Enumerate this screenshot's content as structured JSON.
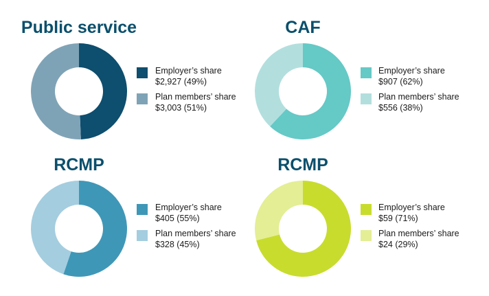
{
  "chart_data": [
    {
      "type": "pie",
      "title": "Public service",
      "slices": [
        {
          "label": "Employer’s share",
          "value": 2927,
          "value_text": "$2,927 (49%)",
          "percent": 49,
          "color": "#0e4e6e"
        },
        {
          "label": "Plan members’ share",
          "value": 3003,
          "value_text": "$3,003 (51%)",
          "percent": 51,
          "color": "#7fa3b6"
        }
      ]
    },
    {
      "type": "pie",
      "title": "CAF",
      "slices": [
        {
          "label": "Employer’s share",
          "value": 907,
          "value_text": "$907 (62%)",
          "percent": 62,
          "color": "#65c9c6"
        },
        {
          "label": "Plan members’ share",
          "value": 556,
          "value_text": "$556 (38%)",
          "percent": 38,
          "color": "#b2dfde"
        }
      ]
    },
    {
      "type": "pie",
      "title": "RCMP",
      "slices": [
        {
          "label": "Employer’s share",
          "value": 405,
          "value_text": "$405 (55%)",
          "percent": 55,
          "color": "#3f97b7"
        },
        {
          "label": "Plan members’ share",
          "value": 328,
          "value_text": "$328 (45%)",
          "percent": 45,
          "color": "#a4cddf"
        }
      ]
    },
    {
      "type": "pie",
      "title": "RCMP",
      "slices": [
        {
          "label": "Employer’s share",
          "value": 59,
          "value_text": "$59 (71%)",
          "percent": 71,
          "color": "#c8dc2e"
        },
        {
          "label": "Plan members’ share",
          "value": 24,
          "value_text": "$24 (29%)",
          "percent": 29,
          "color": "#e4ee94"
        }
      ]
    }
  ]
}
